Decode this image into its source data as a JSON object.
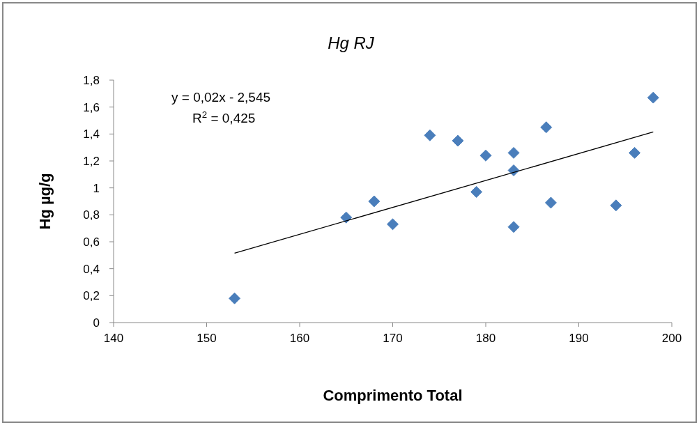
{
  "chart_data": {
    "type": "scatter",
    "title": "Hg RJ",
    "xlabel": "Comprimento Total",
    "ylabel": "Hg µg/g",
    "xlim": [
      140,
      200
    ],
    "xticks": [
      140,
      150,
      160,
      170,
      180,
      190,
      200
    ],
    "ylim": [
      0,
      1.8
    ],
    "yticks": [
      0,
      {
        "value": 0.2,
        "label": "0,2"
      },
      {
        "value": 0.4,
        "label": "0,4"
      },
      {
        "value": 0.6,
        "label": "0,6"
      },
      {
        "value": 0.8,
        "label": "0,8"
      },
      1,
      {
        "value": 1.2,
        "label": "1,2"
      },
      {
        "value": 1.4,
        "label": "1,4"
      },
      {
        "value": 1.6,
        "label": "1,6"
      },
      {
        "value": 1.8,
        "label": "1,8"
      }
    ],
    "grid": false,
    "series": [
      {
        "marker": "diamond",
        "color": "#4a7ebb",
        "x": [
          153,
          165,
          168,
          170,
          174,
          177,
          179,
          180,
          183,
          183,
          183,
          186.5,
          187,
          194,
          196,
          198
        ],
        "values": [
          0.18,
          0.78,
          0.9,
          0.73,
          1.39,
          1.35,
          0.97,
          1.24,
          1.26,
          1.13,
          0.71,
          1.45,
          0.89,
          0.87,
          1.26,
          1.67
        ]
      },
      {
        "type": "line",
        "color": "#000000",
        "x": [
          153,
          198
        ],
        "values": [
          0.515,
          1.415
        ]
      }
    ],
    "annotations": [
      "y = 0,02x - 2,545",
      "R$^{2}$ = 0,425"
    ]
  }
}
